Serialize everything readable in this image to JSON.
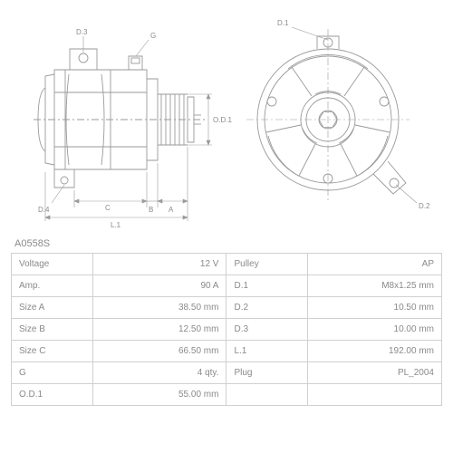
{
  "part_number": "A0558S",
  "diagram": {
    "stroke_color": "#9a9a9a",
    "stroke_width": 0.9,
    "label_color": "#8a8a8a",
    "label_fontsize": 8,
    "labels_side": [
      "D.3",
      "G",
      "D.4",
      "C",
      "B",
      "A",
      "L.1",
      "O.D.1"
    ],
    "labels_front": [
      "D.1",
      "D.2"
    ]
  },
  "spec_table": {
    "border_color": "#d0d0d0",
    "text_color": "#8a8a8a",
    "fontsize": 10,
    "rows": [
      {
        "l1": "Voltage",
        "v1": "12 V",
        "l2": "Pulley",
        "v2": "AP"
      },
      {
        "l1": "Amp.",
        "v1": "90 A",
        "l2": "D.1",
        "v2": "M8x1.25 mm"
      },
      {
        "l1": "Size A",
        "v1": "38.50 mm",
        "l2": "D.2",
        "v2": "10.50 mm"
      },
      {
        "l1": "Size B",
        "v1": "12.50 mm",
        "l2": "D.3",
        "v2": "10.00 mm"
      },
      {
        "l1": "Size C",
        "v1": "66.50 mm",
        "l2": "L.1",
        "v2": "192.00 mm"
      },
      {
        "l1": "G",
        "v1": "4 qty.",
        "l2": "Plug",
        "v2": "PL_2004"
      },
      {
        "l1": "O.D.1",
        "v1": "55.00 mm",
        "l2": "",
        "v2": ""
      }
    ]
  }
}
